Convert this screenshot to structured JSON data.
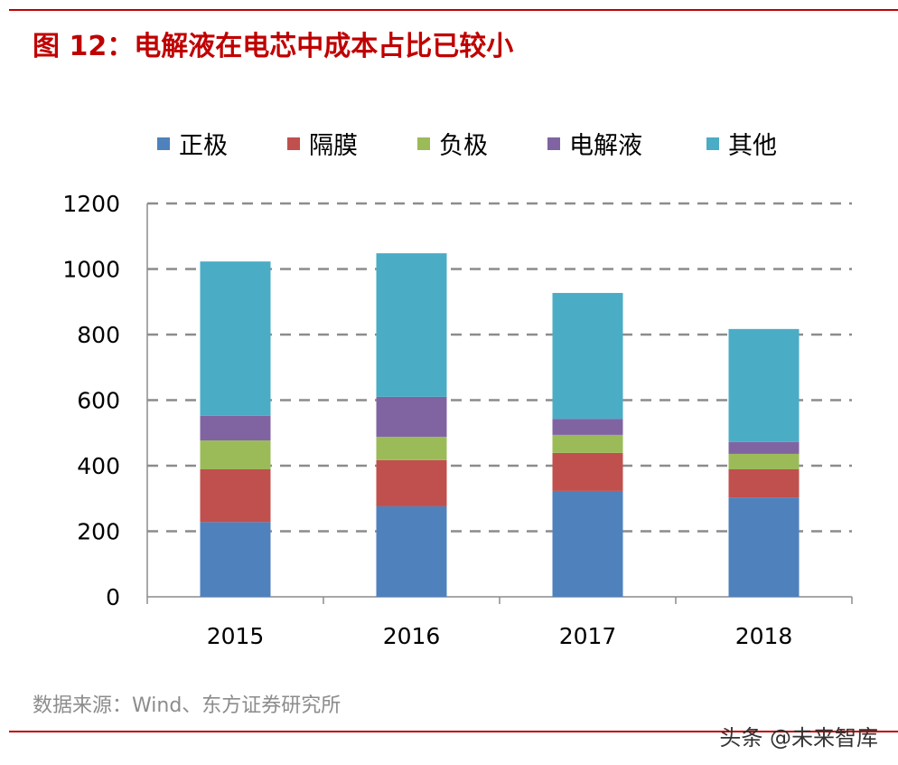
{
  "title": "图 12：电解液在电芯中成本占比已较小",
  "source": "数据来源：Wind、东方证券研究所",
  "watermark": "头条 @未来智库",
  "chart_data": {
    "type": "bar",
    "stacked": true,
    "categories": [
      "2015",
      "2016",
      "2017",
      "2018"
    ],
    "series": [
      {
        "name": "正极",
        "color": "#4f81bd",
        "values": [
          228,
          276,
          323,
          303
        ]
      },
      {
        "name": "隔膜",
        "color": "#c0504d",
        "values": [
          161,
          141,
          116,
          86
        ]
      },
      {
        "name": "负极",
        "color": "#9bbb59",
        "values": [
          88,
          71,
          55,
          47
        ]
      },
      {
        "name": "电解液",
        "color": "#8064a2",
        "values": [
          75,
          122,
          49,
          36
        ]
      },
      {
        "name": "其他",
        "color": "#4bacc6",
        "values": [
          471,
          438,
          384,
          345
        ]
      }
    ],
    "ylim": [
      0,
      1200
    ],
    "yticks": [
      "0",
      "200",
      "400",
      "600",
      "800",
      "1000",
      "1200"
    ],
    "grid": true,
    "legend": "top"
  }
}
